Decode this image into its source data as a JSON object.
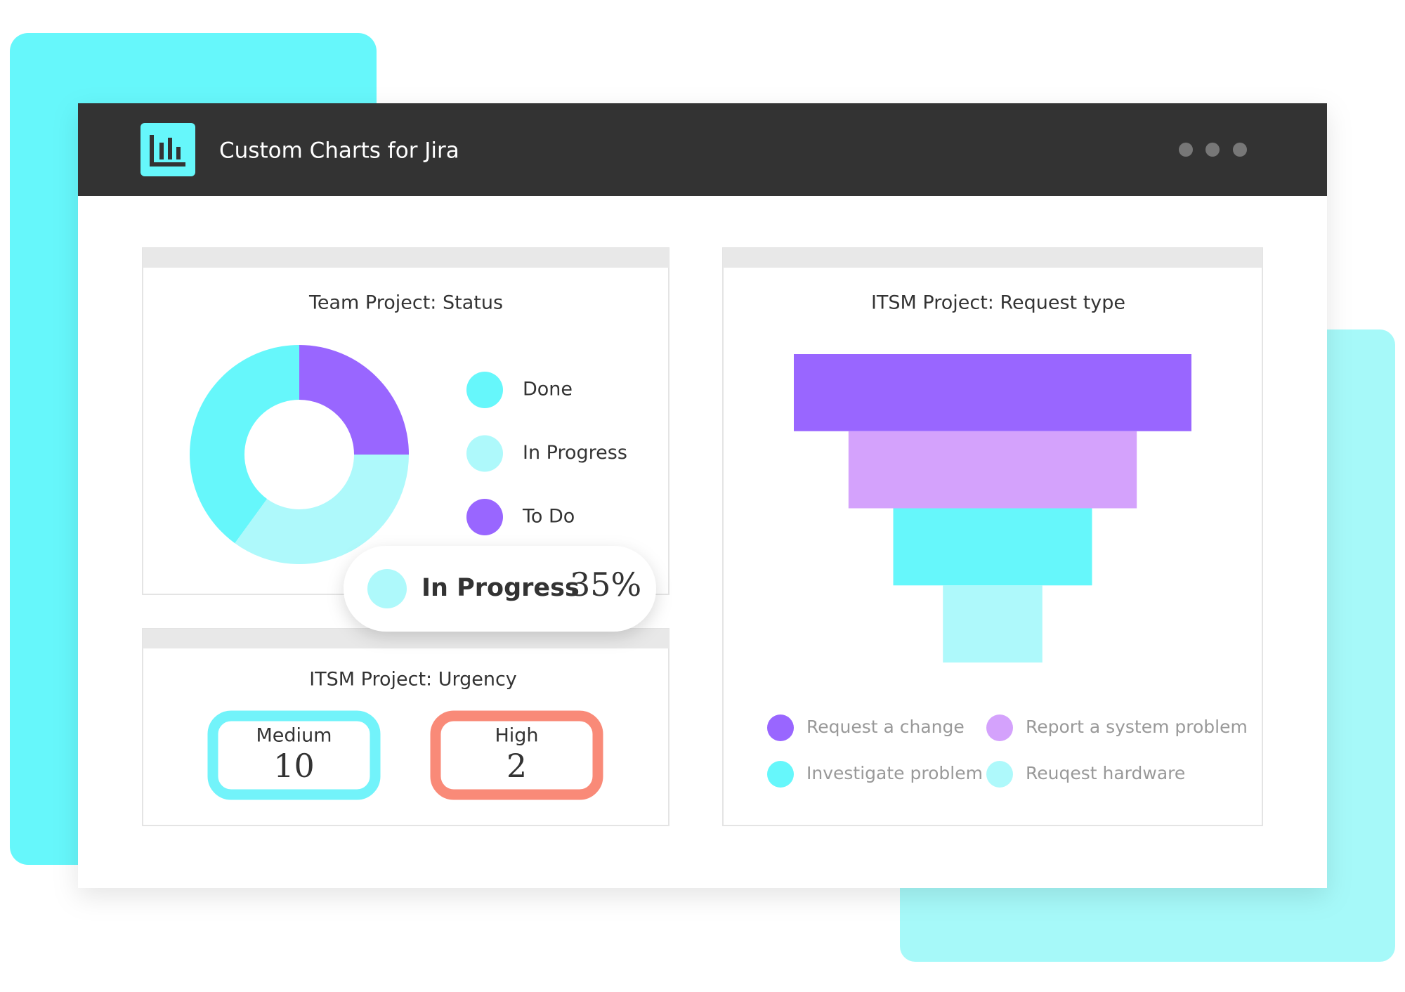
{
  "header": {
    "title": "Custom Charts for Jira"
  },
  "chart_data": [
    {
      "type": "donut",
      "title": "Team Project: Status",
      "categories": [
        "Done",
        "In Progress",
        "To Do"
      ],
      "values": [
        40,
        35,
        25
      ],
      "value_labels": [
        null,
        "35%",
        null
      ],
      "colors": [
        "#66f7fb",
        "#aef9fb",
        "#9966ff"
      ]
    },
    {
      "type": "stat",
      "title": "ITSM Project: Urgency",
      "categories": [
        "Medium",
        "High"
      ],
      "values": [
        10,
        2
      ],
      "colors": [
        "#72f3fa",
        "#f98a78"
      ]
    },
    {
      "type": "funnel",
      "title": "ITSM Project: Request type",
      "categories": [
        "Request a change",
        "Report a system problem",
        "Investigate problem",
        "Reuqest hardware"
      ],
      "values": [
        40,
        29,
        20,
        10
      ],
      "colors": [
        "#9966ff",
        "#d4a2fc",
        "#66f7fb",
        "#aef9fb"
      ]
    }
  ]
}
